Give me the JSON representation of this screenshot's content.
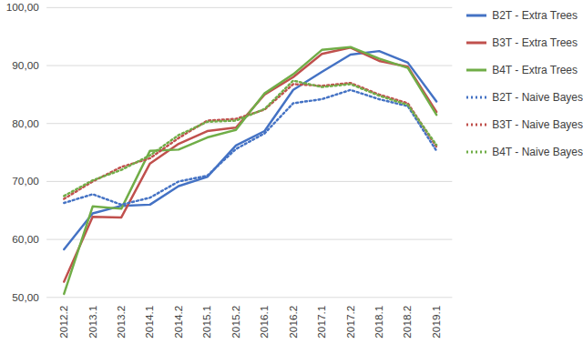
{
  "chart_data": {
    "type": "line",
    "categories": [
      "2012.2",
      "2013.1",
      "2013.2",
      "2014.1",
      "2014.2",
      "2015.1",
      "2015.2",
      "2016.1",
      "2016.2",
      "2017.1",
      "2017.2",
      "2018.1",
      "2018.2",
      "2019.1"
    ],
    "series": [
      {
        "name": "B2T - Extra Trees",
        "color": "#4472c4",
        "line_style": "solid",
        "values": [
          58.3,
          64.5,
          65.8,
          66.0,
          69.2,
          70.8,
          76.2,
          78.7,
          85.8,
          88.9,
          91.9,
          92.5,
          90.5,
          83.8
        ]
      },
      {
        "name": "B3T - Extra Trees",
        "color": "#c0504d",
        "line_style": "solid",
        "values": [
          52.7,
          63.9,
          63.8,
          73.1,
          76.5,
          78.7,
          79.3,
          85.0,
          88.0,
          92.0,
          93.1,
          90.8,
          89.8,
          82.0
        ]
      },
      {
        "name": "B4T - Extra Trees",
        "color": "#70ad47",
        "line_style": "solid",
        "values": [
          50.6,
          65.7,
          65.3,
          75.3,
          75.5,
          77.6,
          78.9,
          85.2,
          88.5,
          92.7,
          93.2,
          91.2,
          89.6,
          81.5
        ]
      },
      {
        "name": "B2T - Naive Bayes",
        "color": "#4472c4",
        "line_style": "dotted",
        "values": [
          66.3,
          67.8,
          66.0,
          67.2,
          70.0,
          71.0,
          75.6,
          78.3,
          83.5,
          84.2,
          85.8,
          84.2,
          83.0,
          75.3
        ]
      },
      {
        "name": "B3T - Naive Bayes",
        "color": "#c0504d",
        "line_style": "dotted",
        "values": [
          67.0,
          70.0,
          72.5,
          74.0,
          77.5,
          80.5,
          80.8,
          82.4,
          86.8,
          86.5,
          87.0,
          85.0,
          83.5,
          76.0
        ]
      },
      {
        "name": "B4T - Naive Bayes",
        "color": "#70ad47",
        "line_style": "dotted",
        "values": [
          67.5,
          70.2,
          72.0,
          74.5,
          78.0,
          80.3,
          80.5,
          82.5,
          87.4,
          86.3,
          86.8,
          84.8,
          83.2,
          76.3
        ]
      }
    ],
    "ylim": [
      50,
      100
    ],
    "yticks": [
      {
        "value": 50,
        "label": "50,00"
      },
      {
        "value": 60,
        "label": "60,00"
      },
      {
        "value": 70,
        "label": "70,00"
      },
      {
        "value": 80,
        "label": "80,00"
      },
      {
        "value": 90,
        "label": "90,00"
      },
      {
        "value": 100,
        "label": "100,00"
      }
    ],
    "grid": true,
    "legend": "right"
  }
}
